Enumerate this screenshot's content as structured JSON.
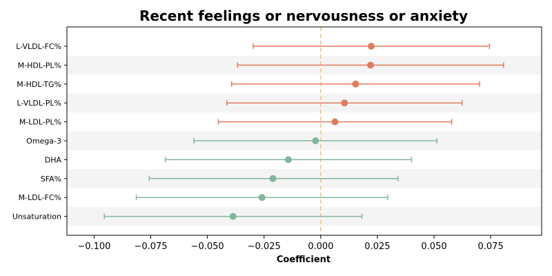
{
  "colors": {
    "positive": "#e07b5d",
    "negative": "#82b59b",
    "zero_line": "#f5c27a",
    "band": "#f4f4f4",
    "axis": "#000000"
  },
  "chart_data": {
    "type": "forest",
    "title": "Recent feelings or nervousness or anxiety",
    "xlabel": "Coefficient",
    "ylabel": "",
    "xlim": [
      -0.112,
      0.0975
    ],
    "xticks": [
      -0.1,
      -0.075,
      -0.05,
      -0.025,
      0.0,
      0.025,
      0.05,
      0.075
    ],
    "xtick_labels": [
      "−0.100",
      "−0.075",
      "−0.050",
      "−0.025",
      "0.000",
      "0.025",
      "0.050",
      "0.075"
    ],
    "reference_line": 0.0,
    "grid": false,
    "rows": [
      {
        "label": "L-VLDL-FC%",
        "coef": 0.0223,
        "lower": -0.0298,
        "upper": 0.0745
      },
      {
        "label": "M-HDL-PL%",
        "coef": 0.022,
        "lower": -0.0367,
        "upper": 0.0807
      },
      {
        "label": "M-HDL-TG%",
        "coef": 0.0154,
        "lower": -0.0393,
        "upper": 0.0701
      },
      {
        "label": "L-VLDL-PL%",
        "coef": 0.0105,
        "lower": -0.0414,
        "upper": 0.0624
      },
      {
        "label": "M-LDL-PL%",
        "coef": 0.0063,
        "lower": -0.0452,
        "upper": 0.0578
      },
      {
        "label": "Omega-3",
        "coef": -0.0023,
        "lower": -0.0559,
        "upper": 0.0513
      },
      {
        "label": "DHA",
        "coef": -0.0143,
        "lower": -0.0686,
        "upper": 0.0401
      },
      {
        "label": "SFA%",
        "coef": -0.0211,
        "lower": -0.0757,
        "upper": 0.0341
      },
      {
        "label": "M-LDL-FC%",
        "coef": -0.0259,
        "lower": -0.0814,
        "upper": 0.0296
      },
      {
        "label": "Unsaturation",
        "coef": -0.0387,
        "lower": -0.0955,
        "upper": 0.0182
      }
    ]
  }
}
